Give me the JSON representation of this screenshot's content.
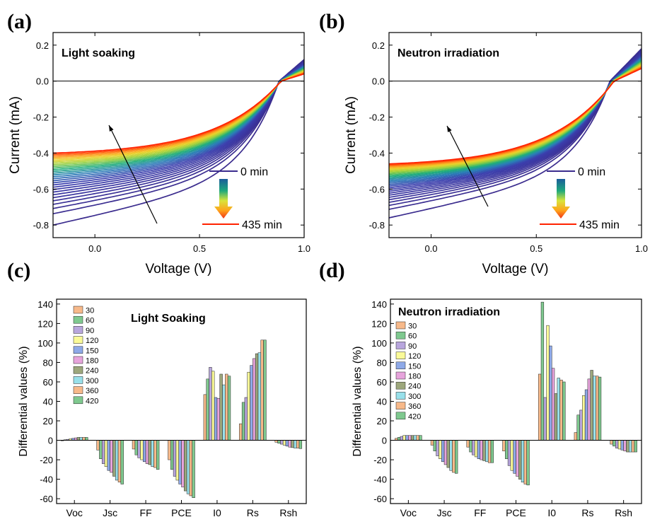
{
  "chart_data": [
    {
      "panel": "(a)",
      "type": "line",
      "title": "Light soaking",
      "xlabel": "Voltage (V)",
      "ylabel": "Current (mA)",
      "xlim": [
        -0.2,
        1.0
      ],
      "ylim": [
        -0.87,
        0.27
      ],
      "xticks": [
        "0.0",
        "0.5",
        "1.0"
      ],
      "yticks": [
        "-0.8",
        "-0.6",
        "-0.4",
        "-0.2",
        "0.0",
        "0.2"
      ],
      "legend": {
        "start": "0 min",
        "end": "435 min"
      },
      "colors": {
        "start": "#3b2c8e",
        "end": "#ff2200"
      },
      "curve_count": 30,
      "first_curve": {
        "isc_at_minus0_2V": -0.8,
        "voc": 0.88,
        "i_at_1V": 0.12
      },
      "last_curve": {
        "isc_at_minus0_2V": -0.4,
        "voc": 0.89,
        "i_at_1V": 0.04
      }
    },
    {
      "panel": "(b)",
      "type": "line",
      "title": "Neutron irradiation",
      "xlabel": "Voltage (V)",
      "ylabel": "Current (mA)",
      "xlim": [
        -0.2,
        1.0
      ],
      "ylim": [
        -0.87,
        0.27
      ],
      "xticks": [
        "0.0",
        "0.5",
        "1.0"
      ],
      "yticks": [
        "-0.8",
        "-0.6",
        "-0.4",
        "-0.2",
        "0.0",
        "0.2"
      ],
      "legend": {
        "start": "0 min",
        "end": "435 min"
      },
      "colors": {
        "start": "#3b2c8e",
        "end": "#ff2200"
      },
      "curve_count": 30,
      "first_curve": {
        "isc_at_minus0_2V": -0.76,
        "voc": 0.85,
        "i_at_1V": 0.18
      },
      "last_curve": {
        "isc_at_minus0_2V": -0.46,
        "voc": 0.87,
        "i_at_1V": 0.07
      }
    },
    {
      "panel": "(c)",
      "type": "bar",
      "title": "Light Soaking",
      "ylabel": "Differential values (%)",
      "ylim": [
        -65,
        145
      ],
      "yticks": [
        "-60",
        "-40",
        "-20",
        "0",
        "20",
        "40",
        "60",
        "80",
        "100",
        "120",
        "140"
      ],
      "categories": [
        "Voc",
        "Jsc",
        "FF",
        "PCE",
        "I0",
        "Rs",
        "Rsh"
      ],
      "series": [
        {
          "name": "30",
          "values": [
            -0.5,
            -10,
            -9,
            -20,
            47,
            17,
            -2
          ]
        },
        {
          "name": "60",
          "values": [
            0.5,
            -19,
            -15,
            -30,
            63,
            39,
            -3
          ]
        },
        {
          "name": "90",
          "values": [
            1,
            -24,
            -18,
            -37,
            75,
            44,
            -4
          ]
        },
        {
          "name": "120",
          "values": [
            1.5,
            -27,
            -20,
            -41,
            71,
            70,
            -5
          ]
        },
        {
          "name": "150",
          "values": [
            2,
            -31,
            -22,
            -45,
            44,
            77,
            -6
          ]
        },
        {
          "name": "180",
          "values": [
            2.5,
            -33,
            -24,
            -48,
            43,
            84,
            -7
          ]
        },
        {
          "name": "240",
          "values": [
            3,
            -37,
            -25,
            -52,
            68,
            89,
            -7.5
          ]
        },
        {
          "name": "300",
          "values": [
            3,
            -41,
            -27,
            -55,
            57,
            90,
            -8
          ]
        },
        {
          "name": "360",
          "values": [
            3,
            -43,
            -28,
            -57,
            68,
            103,
            -8
          ]
        },
        {
          "name": "420",
          "values": [
            3,
            -45,
            -30,
            -59,
            66,
            103,
            -8.5
          ]
        }
      ],
      "series_colors": [
        "#f7b98a",
        "#7fc98f",
        "#b8a6dd",
        "#fafa98",
        "#8ea9e8",
        "#e7a4dc",
        "#9da77c",
        "#98e0ea",
        "#f7b98a",
        "#7fc98f"
      ]
    },
    {
      "panel": "(d)",
      "type": "bar",
      "title": "Neutron irradiation",
      "ylabel": "Differential values (%)",
      "ylim": [
        -65,
        145
      ],
      "yticks": [
        "-60",
        "-40",
        "-20",
        "0",
        "20",
        "40",
        "60",
        "80",
        "100",
        "120",
        "140"
      ],
      "categories": [
        "Voc",
        "Jsc",
        "FF",
        "PCE",
        "I0",
        "Rs",
        "Rsh"
      ],
      "series": [
        {
          "name": "30",
          "values": [
            2,
            -5,
            -7,
            -11,
            68,
            8,
            -4
          ]
        },
        {
          "name": "60",
          "values": [
            3,
            -11,
            -12,
            -19,
            142,
            26,
            -6
          ]
        },
        {
          "name": "90",
          "values": [
            4,
            -16,
            -15,
            -26,
            44,
            31,
            -8
          ]
        },
        {
          "name": "120",
          "values": [
            5,
            -19,
            -17,
            -31,
            118,
            46,
            -9
          ]
        },
        {
          "name": "150",
          "values": [
            5,
            -22,
            -19,
            -34,
            97,
            52,
            -10
          ]
        },
        {
          "name": "180",
          "values": [
            5,
            -25,
            -20,
            -37,
            74,
            63,
            -11
          ]
        },
        {
          "name": "240",
          "values": [
            5,
            -28,
            -21,
            -40,
            48,
            72,
            -12
          ]
        },
        {
          "name": "300",
          "values": [
            5,
            -31,
            -22,
            -43,
            64,
            66,
            -12
          ]
        },
        {
          "name": "360",
          "values": [
            5,
            -33,
            -23,
            -45,
            62,
            66,
            -12
          ]
        },
        {
          "name": "420",
          "values": [
            5,
            -34,
            -23,
            -46,
            60,
            65,
            -12
          ]
        }
      ],
      "series_colors": [
        "#f7b98a",
        "#7fc98f",
        "#b8a6dd",
        "#fafa98",
        "#8ea9e8",
        "#e7a4dc",
        "#9da77c",
        "#98e0ea",
        "#f7b98a",
        "#7fc98f"
      ]
    }
  ]
}
